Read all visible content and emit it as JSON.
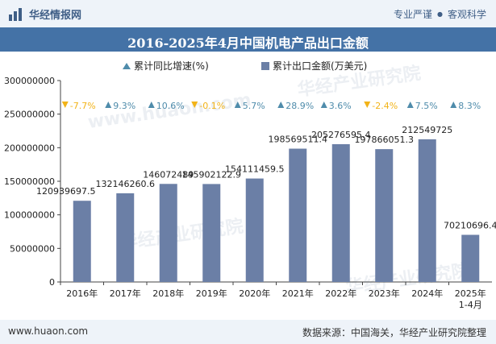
{
  "header": {
    "brand": "华经情报网",
    "tag1": "专业严谨",
    "tag2": "客观科学"
  },
  "title": "2016-2025年4月中国机电产品出口金额",
  "legend": {
    "growth": "累计同比增速(%)",
    "amount": "累计出口金额(万美元)"
  },
  "footer": {
    "website": "www.huaon.com",
    "source": "数据来源：中国海关，华经产业研究院整理"
  },
  "watermark": {
    "text1": "华经产业研究院",
    "text2": "www.huaon.com"
  },
  "colors": {
    "bar": "#6b7fa6",
    "up": "#4f8cab",
    "down": "#f2b318",
    "title_bg": "#4472a6"
  },
  "chart_data": {
    "type": "bar",
    "categories": [
      "2016年",
      "2017年",
      "2018年",
      "2019年",
      "2020年",
      "2021年",
      "2022年",
      "2023年",
      "2024年",
      "2025年\n1-4月"
    ],
    "series": [
      {
        "name": "累计出口金额(万美元)",
        "values": [
          120939697.5,
          132146260.6,
          146072489,
          145902122.9,
          154111459.5,
          198569511.4,
          205276595.4,
          197866051.3,
          212549725,
          70210696.4
        ],
        "labels": [
          "120939697.5",
          "132146260.6",
          "146072489",
          "145902122.9",
          "154111459.5",
          "198569511.4",
          "205276595.4",
          "197866051.3",
          "212549725",
          "70210696.4"
        ]
      },
      {
        "name": "累计同比增速(%)",
        "values": [
          -7.7,
          9.3,
          10.6,
          -0.1,
          5.7,
          28.9,
          3.6,
          -2.4,
          7.5,
          8.3
        ],
        "labels": [
          "-7.7%",
          "9.3%",
          "10.6%",
          "-0.1%",
          "5.7%",
          "28.9%",
          "3.6%",
          "-2.4%",
          "7.5%",
          "8.3%"
        ]
      }
    ],
    "yticks": [
      "0",
      "50000000",
      "100000000",
      "150000000",
      "200000000",
      "250000000",
      "300000000"
    ],
    "ylim": [
      0,
      300000000
    ],
    "grid": false,
    "legend_position": "top-center"
  }
}
